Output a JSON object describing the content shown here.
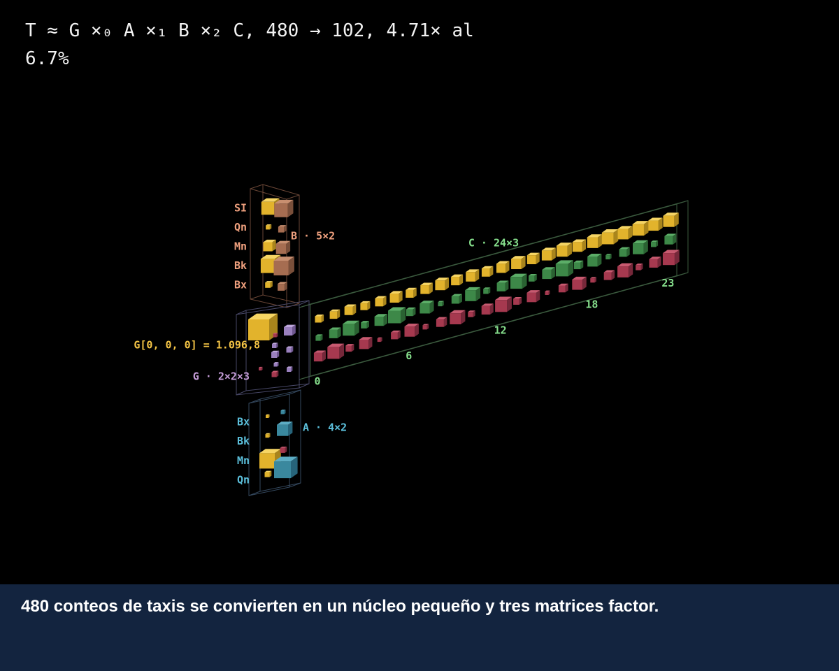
{
  "header": {
    "title": "T ≈ G ×₀ A ×₁ B ×₂ C, 480 → 102, 4.71× al 6.7%"
  },
  "core": {
    "label": "G · 2×2×3",
    "entry_label": "G[0, 0, 0] = 1.096,8"
  },
  "factor_a": {
    "label": "A · 4×2",
    "rows": [
      "Bx",
      "Bk",
      "Mn",
      "Qn"
    ]
  },
  "factor_b": {
    "label": "B · 5×2",
    "rows": [
      "SI",
      "Qn",
      "Mn",
      "Bk",
      "Bx"
    ]
  },
  "factor_c": {
    "label": "C · 24×3",
    "ticks": [
      0,
      6,
      12,
      18,
      23
    ]
  },
  "caption": "480 conteos de taxis se convierten en un núcleo pequeño y tres matrices factor."
}
